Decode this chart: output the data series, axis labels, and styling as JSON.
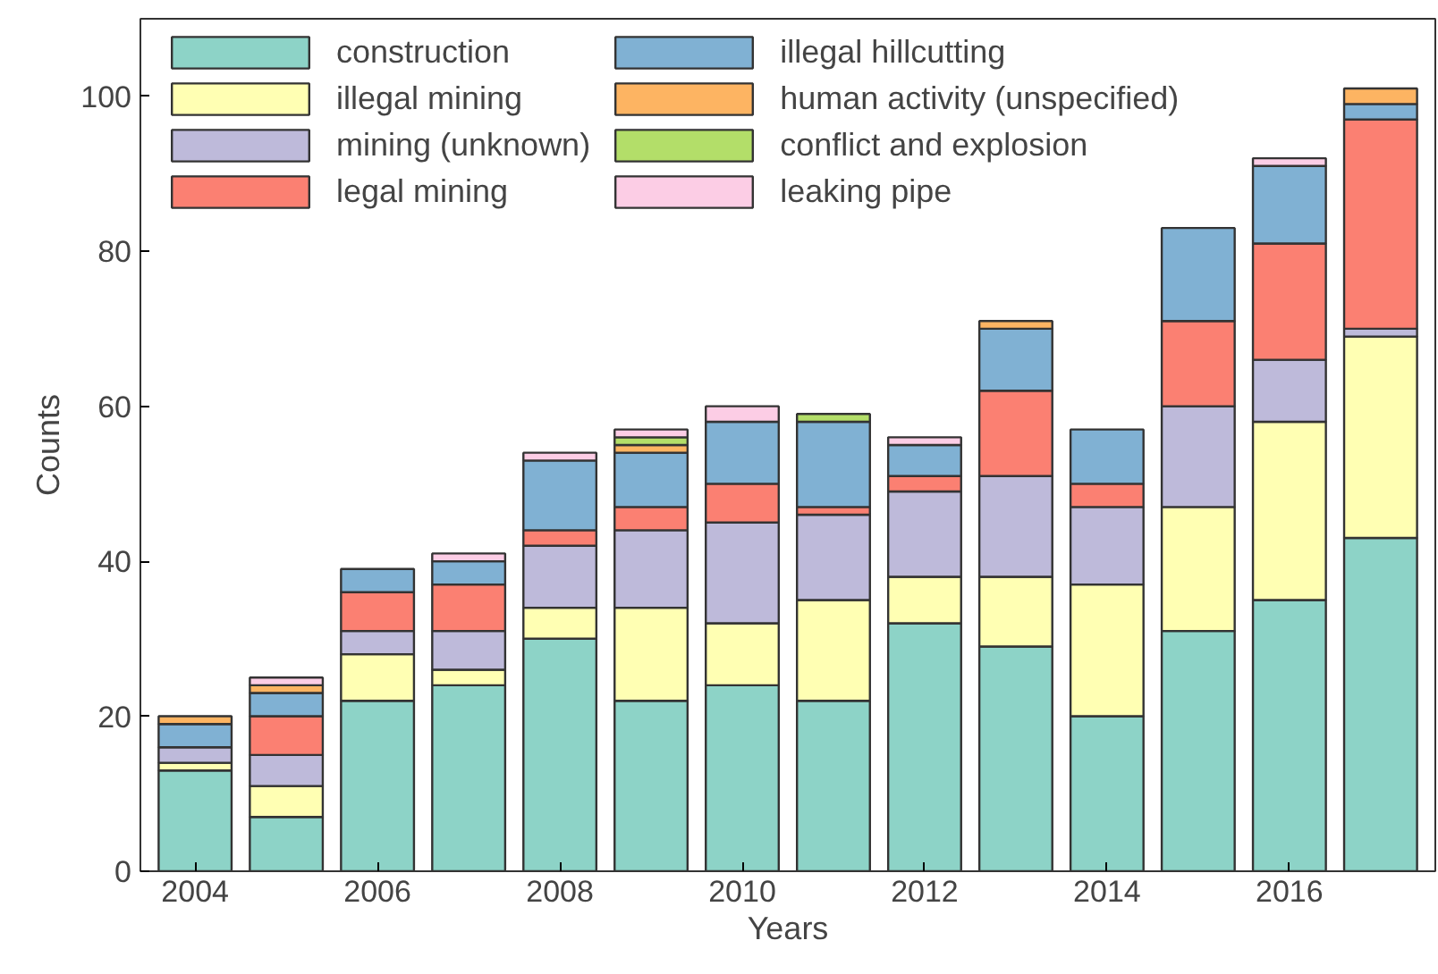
{
  "chart_data": {
    "type": "bar",
    "stacked": true,
    "xlabel": "Years",
    "ylabel": "Counts",
    "x": [
      2004,
      2005,
      2006,
      2007,
      2008,
      2009,
      2010,
      2011,
      2012,
      2013,
      2014,
      2015,
      2016,
      2017
    ],
    "xlim": [
      2003.4,
      2017.6
    ],
    "xticks": [
      2004,
      2006,
      2008,
      2010,
      2012,
      2014,
      2016
    ],
    "ylim": [
      0,
      110
    ],
    "yticks": [
      0,
      20,
      40,
      60,
      80,
      100
    ],
    "grid": false,
    "legend": "top left",
    "series": [
      {
        "name": "construction",
        "color": "#8dd3c7",
        "values": [
          13,
          7,
          22,
          24,
          30,
          22,
          24,
          22,
          32,
          29,
          20,
          31,
          35,
          43
        ]
      },
      {
        "name": "illegal mining",
        "color": "#ffffb3",
        "values": [
          1,
          4,
          6,
          2,
          4,
          12,
          8,
          13,
          6,
          9,
          17,
          16,
          23,
          26
        ]
      },
      {
        "name": "mining (unknown)",
        "color": "#bebada",
        "values": [
          2,
          4,
          3,
          5,
          8,
          10,
          13,
          11,
          11,
          13,
          10,
          13,
          8,
          1
        ]
      },
      {
        "name": "legal mining",
        "color": "#fb8072",
        "values": [
          0,
          5,
          5,
          6,
          2,
          3,
          5,
          1,
          2,
          11,
          3,
          11,
          15,
          27
        ]
      },
      {
        "name": "illegal hillcutting",
        "color": "#80b1d3",
        "values": [
          3,
          3,
          3,
          3,
          9,
          7,
          8,
          11,
          4,
          8,
          7,
          12,
          10,
          2
        ]
      },
      {
        "name": "human activity (unspecified)",
        "color": "#fdb462",
        "values": [
          1,
          1,
          0,
          0,
          0,
          1,
          0,
          0,
          0,
          1,
          0,
          0,
          0,
          2
        ]
      },
      {
        "name": "conflict and explosion",
        "color": "#b3de69",
        "values": [
          0,
          0,
          0,
          0,
          0,
          1,
          0,
          1,
          0,
          0,
          0,
          0,
          0,
          0
        ]
      },
      {
        "name": "leaking pipe",
        "color": "#fccde5",
        "values": [
          0,
          1,
          0,
          1,
          1,
          1,
          2,
          0,
          1,
          0,
          0,
          0,
          1,
          0
        ]
      }
    ]
  }
}
